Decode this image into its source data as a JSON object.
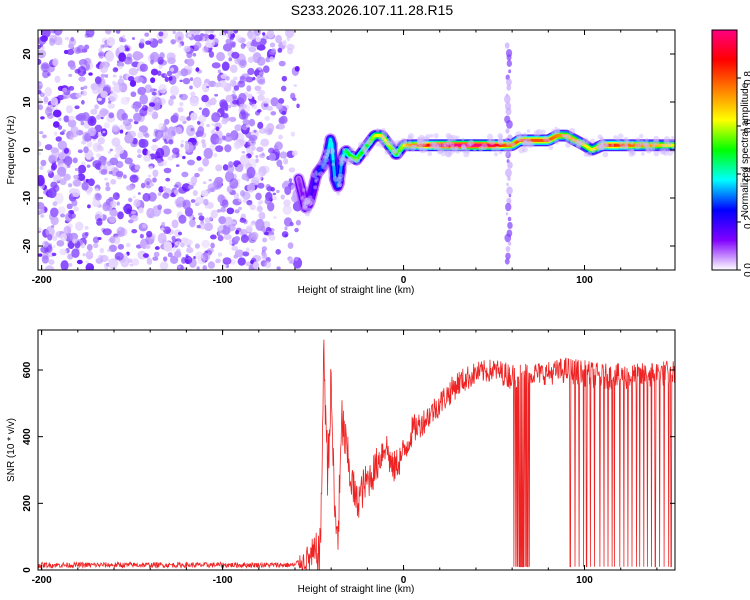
{
  "figure": {
    "title": "S233.2026.107.11.28.R15"
  },
  "chart_data": [
    {
      "type": "heatmap",
      "name": "spectrogram",
      "xlabel": "Height of straight line (km)",
      "ylabel": "Frequency (Hz)",
      "xlim": [
        -202,
        150
      ],
      "ylim": [
        -25,
        25
      ],
      "xticks": [
        -200,
        -100,
        0,
        100
      ],
      "yticks": [
        -20,
        -10,
        0,
        10,
        20
      ],
      "colorbar": {
        "label": "Normalized spectral amplitude",
        "range": [
          0,
          1
        ],
        "ticks": [
          0.0,
          0.2,
          0.4,
          0.6,
          0.8
        ],
        "colormap": [
          "#ffffff",
          "#8000ff",
          "#0000ff",
          "#00ffff",
          "#00ff00",
          "#ffff00",
          "#ff8000",
          "#ff0000",
          "#ff0080"
        ]
      },
      "regions": [
        {
          "label": "noise",
          "x_range": [
            -202,
            -58
          ],
          "freq_range": [
            -25,
            25
          ],
          "amplitude_range": [
            0.0,
            0.15
          ]
        },
        {
          "label": "clean-signal gap",
          "x_range": [
            -58,
            150
          ],
          "freq_range": [
            3,
            25
          ],
          "amplitude_range": [
            0.0,
            0.0
          ]
        },
        {
          "label": "vertical artifact",
          "x": 58,
          "freq_range": [
            -25,
            25
          ],
          "amplitude_range": [
            0.05,
            0.2
          ]
        }
      ],
      "ridge": {
        "x": [
          -58,
          -54,
          -52,
          -50,
          -48,
          -44,
          -42,
          -40,
          -38,
          -36,
          -34,
          -32,
          -30,
          -26,
          -24,
          -20,
          -16,
          -12,
          -8,
          -4,
          -2,
          0,
          2,
          10,
          20,
          30,
          40,
          50,
          56,
          60,
          64,
          70,
          80,
          85,
          90,
          95,
          100,
          104,
          110,
          116,
          120,
          130,
          140,
          150
        ],
        "frequency": [
          -6,
          -12,
          -11,
          -8,
          -5,
          -3,
          -1,
          3,
          -6,
          -8,
          -2,
          0,
          -1,
          -2,
          -1,
          1,
          3,
          3,
          1,
          -1,
          0,
          1,
          1,
          1,
          1,
          1,
          1,
          1,
          1,
          1,
          2,
          2,
          2,
          3,
          3,
          2,
          1,
          0,
          1,
          1,
          1,
          1,
          1,
          1
        ],
        "amplitude": [
          0.1,
          0.15,
          0.15,
          0.2,
          0.25,
          0.3,
          0.35,
          0.4,
          0.3,
          0.3,
          0.35,
          0.45,
          0.5,
          0.55,
          0.5,
          0.5,
          0.6,
          0.65,
          0.6,
          0.5,
          0.55,
          0.6,
          0.7,
          0.8,
          0.95,
          1.0,
          1.0,
          0.95,
          0.8,
          0.75,
          0.8,
          0.8,
          0.8,
          0.75,
          0.7,
          0.7,
          0.65,
          0.6,
          0.75,
          0.85,
          0.8,
          0.75,
          0.7,
          0.6
        ]
      }
    },
    {
      "type": "line",
      "name": "snr",
      "xlabel": "Height of straight line (km)",
      "ylabel": "SNR (10 * v/v)",
      "xlim": [
        -202,
        150
      ],
      "ylim": [
        0,
        720
      ],
      "xticks": [
        -200,
        -100,
        0,
        100
      ],
      "yticks": [
        0,
        200,
        400,
        600
      ],
      "series": [
        {
          "name": "SNR",
          "color": "#ee2222",
          "envelope_x": [
            -202,
            -150,
            -100,
            -60,
            -46,
            -44,
            -42,
            -40,
            -38,
            -36,
            -34,
            -30,
            -26,
            -22,
            -16,
            -10,
            -6,
            0,
            5,
            10,
            20,
            30,
            40,
            50,
            60,
            70,
            80,
            90,
            100,
            110,
            120,
            130,
            140,
            150
          ],
          "envelope_y": [
            15,
            15,
            15,
            15,
            50,
            650,
            300,
            550,
            150,
            120,
            450,
            300,
            200,
            250,
            300,
            380,
            300,
            350,
            420,
            440,
            500,
            560,
            590,
            600,
            580,
            590,
            590,
            600,
            590,
            580,
            580,
            580,
            590,
            590
          ],
          "noise_amplitude": [
            8,
            8,
            8,
            8,
            80,
            90,
            90,
            90,
            90,
            90,
            80,
            70,
            60,
            60,
            55,
            55,
            50,
            50,
            45,
            40,
            40,
            40,
            35,
            35,
            40,
            35,
            35,
            40,
            40,
            40,
            40,
            40,
            40,
            40
          ],
          "dropouts": [
            {
              "x": [
                61,
                70
              ],
              "to": 10,
              "count": 12
            },
            {
              "x": [
                92,
                150
              ],
              "to": 10,
              "count": 26
            }
          ]
        }
      ]
    }
  ]
}
